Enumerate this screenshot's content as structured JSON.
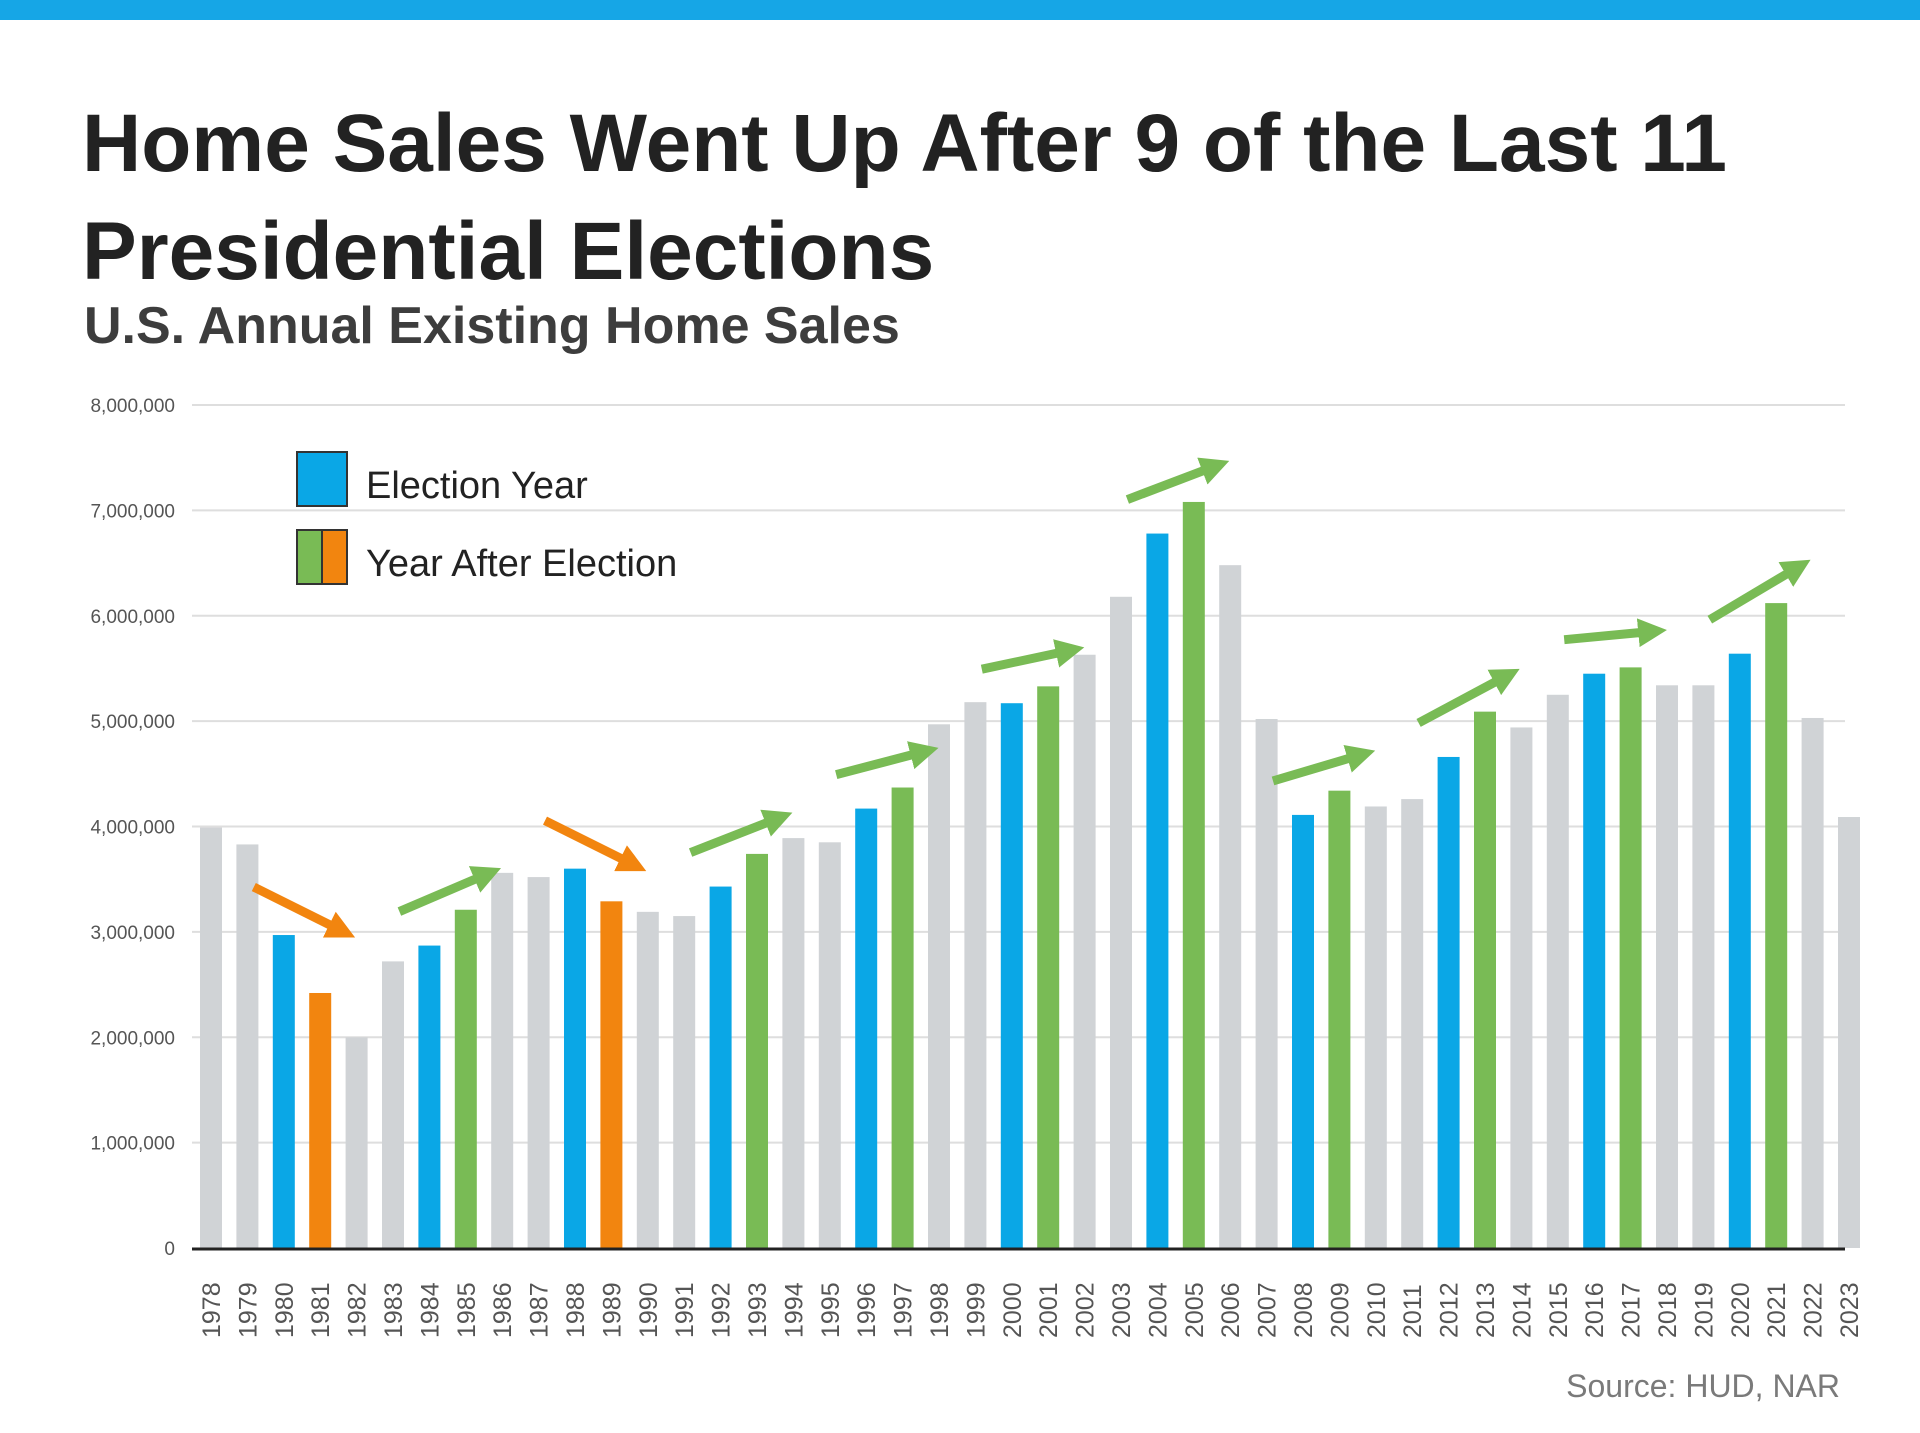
{
  "header": {
    "title": "Home Sales Went Up After 9 of the Last 11 Presidential Elections",
    "subtitle": "U.S. Annual Existing Home Sales"
  },
  "source": "Source: HUD, NAR",
  "colors": {
    "election": "#0aa7e6",
    "after_up": "#79bb55",
    "after_down": "#f2850f",
    "other": "#d0d3d6",
    "accent_bar": "#16a6e6"
  },
  "chart_data": {
    "type": "bar",
    "title": "Home Sales Went Up After 9 of the Last 11 Presidential Elections",
    "subtitle": "U.S. Annual Existing Home Sales",
    "xlabel": "",
    "ylabel": "",
    "ylim": [
      0,
      8000000
    ],
    "yticks": [
      0,
      1000000,
      2000000,
      3000000,
      4000000,
      5000000,
      6000000,
      7000000,
      8000000
    ],
    "ytick_labels": [
      "0",
      "1,000,000",
      "2,000,000",
      "3,000,000",
      "4,000,000",
      "5,000,000",
      "6,000,000",
      "7,000,000",
      "8,000,000"
    ],
    "grid": true,
    "legend_position": "top-left",
    "legend": [
      {
        "label": "Election Year",
        "colors": [
          "election"
        ]
      },
      {
        "label": "Year After Election",
        "colors": [
          "after_up",
          "after_down"
        ]
      }
    ],
    "categories": [
      "1978",
      "1979",
      "1980",
      "1981",
      "1982",
      "1983",
      "1984",
      "1985",
      "1986",
      "1987",
      "1988",
      "1989",
      "1990",
      "1991",
      "1992",
      "1993",
      "1994",
      "1995",
      "1996",
      "1997",
      "1998",
      "1999",
      "2000",
      "2001",
      "2002",
      "2003",
      "2004",
      "2005",
      "2006",
      "2007",
      "2008",
      "2009",
      "2010",
      "2011",
      "2012",
      "2013",
      "2014",
      "2015",
      "2016",
      "2017",
      "2018",
      "2019",
      "2020",
      "2021",
      "2022",
      "2023"
    ],
    "values": [
      3990000,
      3830000,
      2970000,
      2420000,
      2000000,
      2720000,
      2870000,
      3210000,
      3560000,
      3520000,
      3600000,
      3290000,
      3190000,
      3150000,
      3430000,
      3740000,
      3890000,
      3850000,
      4170000,
      4370000,
      4970000,
      5180000,
      5170000,
      5330000,
      5630000,
      6180000,
      6780000,
      7080000,
      6480000,
      5020000,
      4110000,
      4340000,
      4190000,
      4260000,
      4660000,
      5090000,
      4940000,
      5250000,
      5450000,
      5510000,
      5340000,
      5340000,
      5640000,
      6120000,
      5030000,
      4090000
    ],
    "bar_types": [
      "other",
      "other",
      "election",
      "after_down",
      "other",
      "other",
      "election",
      "after_up",
      "other",
      "other",
      "election",
      "after_down",
      "other",
      "other",
      "election",
      "after_up",
      "other",
      "other",
      "election",
      "after_up",
      "other",
      "other",
      "election",
      "after_up",
      "other",
      "other",
      "election",
      "after_up",
      "other",
      "other",
      "election",
      "after_up",
      "other",
      "other",
      "election",
      "after_up",
      "other",
      "other",
      "election",
      "after_up",
      "other",
      "other",
      "election",
      "after_up",
      "other",
      "other"
    ],
    "arrows": [
      {
        "from": "1980",
        "to": "1981",
        "direction": "down"
      },
      {
        "from": "1984",
        "to": "1985",
        "direction": "up"
      },
      {
        "from": "1988",
        "to": "1989",
        "direction": "down"
      },
      {
        "from": "1992",
        "to": "1993",
        "direction": "up"
      },
      {
        "from": "1996",
        "to": "1997",
        "direction": "up"
      },
      {
        "from": "2000",
        "to": "2001",
        "direction": "up"
      },
      {
        "from": "2004",
        "to": "2005",
        "direction": "up"
      },
      {
        "from": "2008",
        "to": "2009",
        "direction": "up"
      },
      {
        "from": "2012",
        "to": "2013",
        "direction": "up"
      },
      {
        "from": "2016",
        "to": "2017",
        "direction": "up"
      },
      {
        "from": "2020",
        "to": "2021",
        "direction": "up"
      }
    ]
  }
}
